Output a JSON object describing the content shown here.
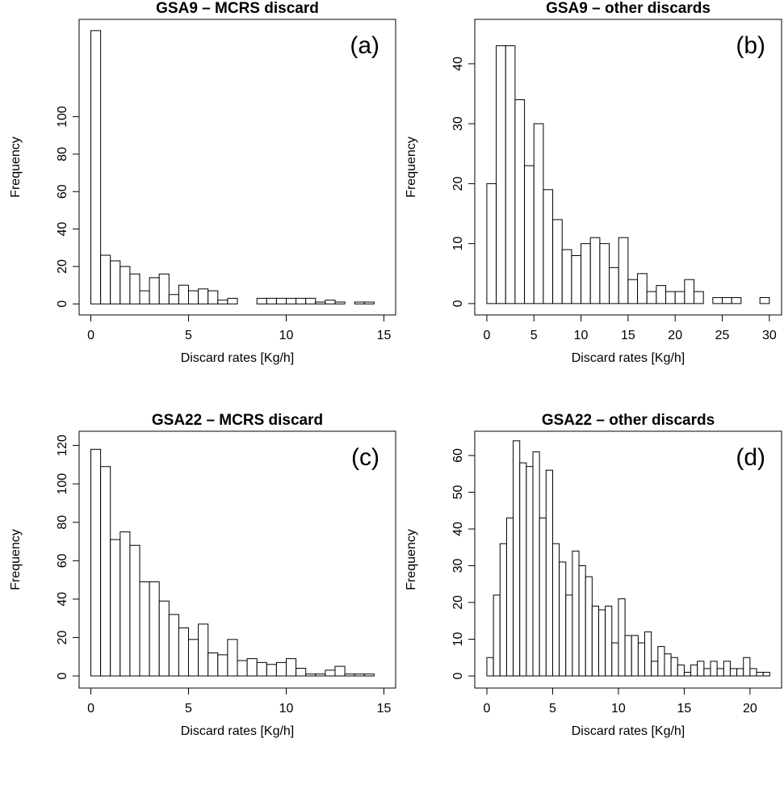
{
  "chart_data": [
    {
      "type": "histogram",
      "title": "GSA9 – MCRS  discard",
      "panel_label": "(a)",
      "xlabel": "Discard rates [Kg/h]",
      "ylabel": "Frequency",
      "color": "#ffffff",
      "bins": [
        0,
        0.5,
        1,
        1.5,
        2,
        2.5,
        3,
        3.5,
        4,
        4.5,
        5,
        5.5,
        6,
        6.5,
        7,
        7.5,
        8,
        8.5,
        9,
        9.5,
        10,
        10.5,
        11,
        11.5,
        12,
        12.5,
        13,
        13.5,
        14,
        14.5
      ],
      "values": [
        146,
        26,
        23,
        20,
        16,
        7,
        14,
        16,
        5,
        10,
        7,
        8,
        7,
        2,
        3,
        0,
        0,
        3,
        3,
        3,
        3,
        3,
        3,
        1,
        2,
        1,
        0,
        1,
        1
      ],
      "xlim": [
        -0.6,
        15.6
      ],
      "xticks": [
        0,
        5,
        10,
        15
      ],
      "ylim": [
        -5.9,
        152
      ],
      "yticks": [
        0,
        20,
        40,
        60,
        80,
        100
      ]
    },
    {
      "type": "histogram",
      "title": "GSA9 – other discards",
      "panel_label": "(b)",
      "xlabel": "Discard rates [Kg/h]",
      "ylabel": "Frequency",
      "color": "#ffffff",
      "bins": [
        0,
        1,
        2,
        3,
        4,
        5,
        6,
        7,
        8,
        9,
        10,
        11,
        12,
        13,
        14,
        15,
        16,
        17,
        18,
        19,
        20,
        21,
        22,
        23,
        24,
        25,
        26,
        27,
        28,
        29,
        30
      ],
      "values": [
        20,
        43,
        43,
        34,
        23,
        30,
        19,
        14,
        9,
        8,
        10,
        11,
        10,
        6,
        11,
        4,
        5,
        2,
        3,
        2,
        2,
        4,
        2,
        0,
        1,
        1,
        1,
        0,
        0,
        1
      ],
      "xlim": [
        -1.28,
        31.3
      ],
      "xticks": [
        0,
        5,
        10,
        15,
        20,
        25,
        30
      ],
      "ylim": [
        -1.9,
        47.4
      ],
      "yticks": [
        0,
        10,
        20,
        30,
        40
      ]
    },
    {
      "type": "histogram",
      "title": "GSA22 – MCRS discard",
      "panel_label": "(c)",
      "xlabel": "Discard rates [Kg/h]",
      "ylabel": "Frequency",
      "color": "#ffffff",
      "bins": [
        0,
        0.5,
        1,
        1.5,
        2,
        2.5,
        3,
        3.5,
        4,
        4.5,
        5,
        5.5,
        6,
        6.5,
        7,
        7.5,
        8,
        8.5,
        9,
        9.5,
        10,
        10.5,
        11,
        11.5,
        12,
        12.5,
        13,
        13.5,
        14,
        14.5
      ],
      "values": [
        118,
        109,
        71,
        75,
        68,
        49,
        49,
        39,
        32,
        25,
        19,
        27,
        12,
        11,
        19,
        8,
        9,
        7,
        6,
        7,
        9,
        4,
        1,
        1,
        3,
        5,
        1,
        1,
        1
      ],
      "xlim": [
        -0.6,
        15.6
      ],
      "xticks": [
        0,
        5,
        10,
        15
      ],
      "ylim": [
        -6.3,
        127.4
      ],
      "yticks": [
        0,
        20,
        40,
        60,
        80,
        100,
        120
      ]
    },
    {
      "type": "histogram",
      "title": "GSA22 – other discards",
      "panel_label": "(d)",
      "xlabel": "Discard rates [Kg/h]",
      "ylabel": "Frequency",
      "color": "#ffffff",
      "bins": [
        0,
        0.5,
        1,
        1.5,
        2,
        2.5,
        3,
        3.5,
        4,
        4.5,
        5,
        5.5,
        6,
        6.5,
        7,
        7.5,
        8,
        8.5,
        9,
        9.5,
        10,
        10.5,
        11,
        11.5,
        12,
        12.5,
        13,
        13.5,
        14,
        14.5,
        15,
        15.5,
        16,
        16.5,
        17,
        17.5,
        18,
        18.5,
        19,
        19.5,
        20,
        20.5,
        21,
        21.5
      ],
      "values": [
        5,
        22,
        36,
        43,
        64,
        58,
        57,
        61,
        43,
        56,
        36,
        31,
        22,
        34,
        30,
        27,
        19,
        18,
        19,
        9,
        21,
        11,
        11,
        9,
        12,
        4,
        8,
        6,
        5,
        3,
        1,
        3,
        4,
        2,
        4,
        2,
        4,
        2,
        2,
        5,
        2,
        1,
        1
      ],
      "xlim": [
        -0.92,
        22.4
      ],
      "xticks": [
        0,
        5,
        10,
        15,
        20
      ],
      "ylim": [
        -3.3,
        66.6
      ],
      "yticks": [
        0,
        10,
        20,
        30,
        40,
        50,
        60
      ]
    }
  ]
}
